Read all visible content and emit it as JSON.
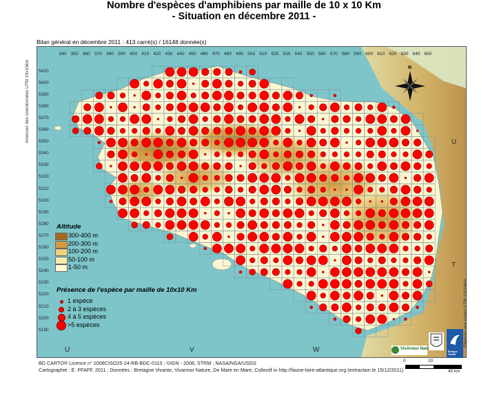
{
  "map": {
    "title_line1": "Nombre d'espèces d'amphibiens par maille de 10 x 10 Km",
    "title_line2": "- Situation en décembre 2011 -",
    "summary": "Bilan général en décembre 2011  :  413 carré(s) / 16148 donnée(s)",
    "x_ticks": [
      "340",
      "350",
      "360",
      "370",
      "380",
      "390",
      "400",
      "410",
      "420",
      "430",
      "440",
      "450",
      "460",
      "470",
      "480",
      "490",
      "500",
      "510",
      "520",
      "530",
      "540",
      "550",
      "560",
      "570",
      "580",
      "590",
      "600",
      "610",
      "620",
      "630",
      "640",
      "650"
    ],
    "y_ticks": [
      "5410",
      "5400",
      "5390",
      "5380",
      "5370",
      "5360",
      "5350",
      "5340",
      "5330",
      "5320",
      "5310",
      "5300",
      "5290",
      "5280",
      "5270",
      "5260",
      "5250",
      "5240",
      "5230",
      "5220",
      "5210",
      "5200",
      "5190"
    ],
    "left_side_label": "Amorces des coordonnées UTM 10x10km",
    "right_side_label": "Repères des codes UTM 10x10km",
    "zones": {
      "u_bottom": "U",
      "v_bottom": "V",
      "w_bottom": "W",
      "u_right": "U",
      "t_right": "T"
    },
    "compass": "N"
  },
  "legend": {
    "altitude_title": "Altitude",
    "altitude_classes": [
      {
        "label": "300-400 m",
        "color": "#a9671e"
      },
      {
        "label": "200-300 m",
        "color": "#d89a3a"
      },
      {
        "label": "100-200 m",
        "color": "#edd27e"
      },
      {
        "label": "50-100 m",
        "color": "#f4ecae"
      },
      {
        "label": "1-50 m",
        "color": "#fbf8d7"
      }
    ],
    "presence_title": "Présence de l'espèce par maille de 10x10 Km",
    "presence_classes": [
      "1 espèce",
      "2 à 3 espèces",
      "4 à 5 espèces",
      ">5 espèces"
    ]
  },
  "credits": {
    "line1": "BD CARTO® Licence n° 2008CISO25-24-RB-BDC-0110 ; ©IGN - 2008, STRM ; NASA/NGA/USGS",
    "line2": "Cartographie : E. PFAFF, 2011 ; Données : Bretagne Vivante, Vivarmor Nature, De Mare en Mare, Collectif in http://faune-loire-atlantique.org (extraction le 15/12/2011)"
  },
  "scale": {
    "labels": [
      "0",
      "20",
      "40 km"
    ]
  },
  "logos": {
    "vivarmor": "VivArmor Nature",
    "bretagne_vivante": "Bretagne Vivante"
  },
  "colors": {
    "sea": "#7dc5c9",
    "land_outside": "#e7eef0",
    "grid": "#7c8f96",
    "dot": "#ff0000",
    "dot_border": "#8a0000"
  }
}
